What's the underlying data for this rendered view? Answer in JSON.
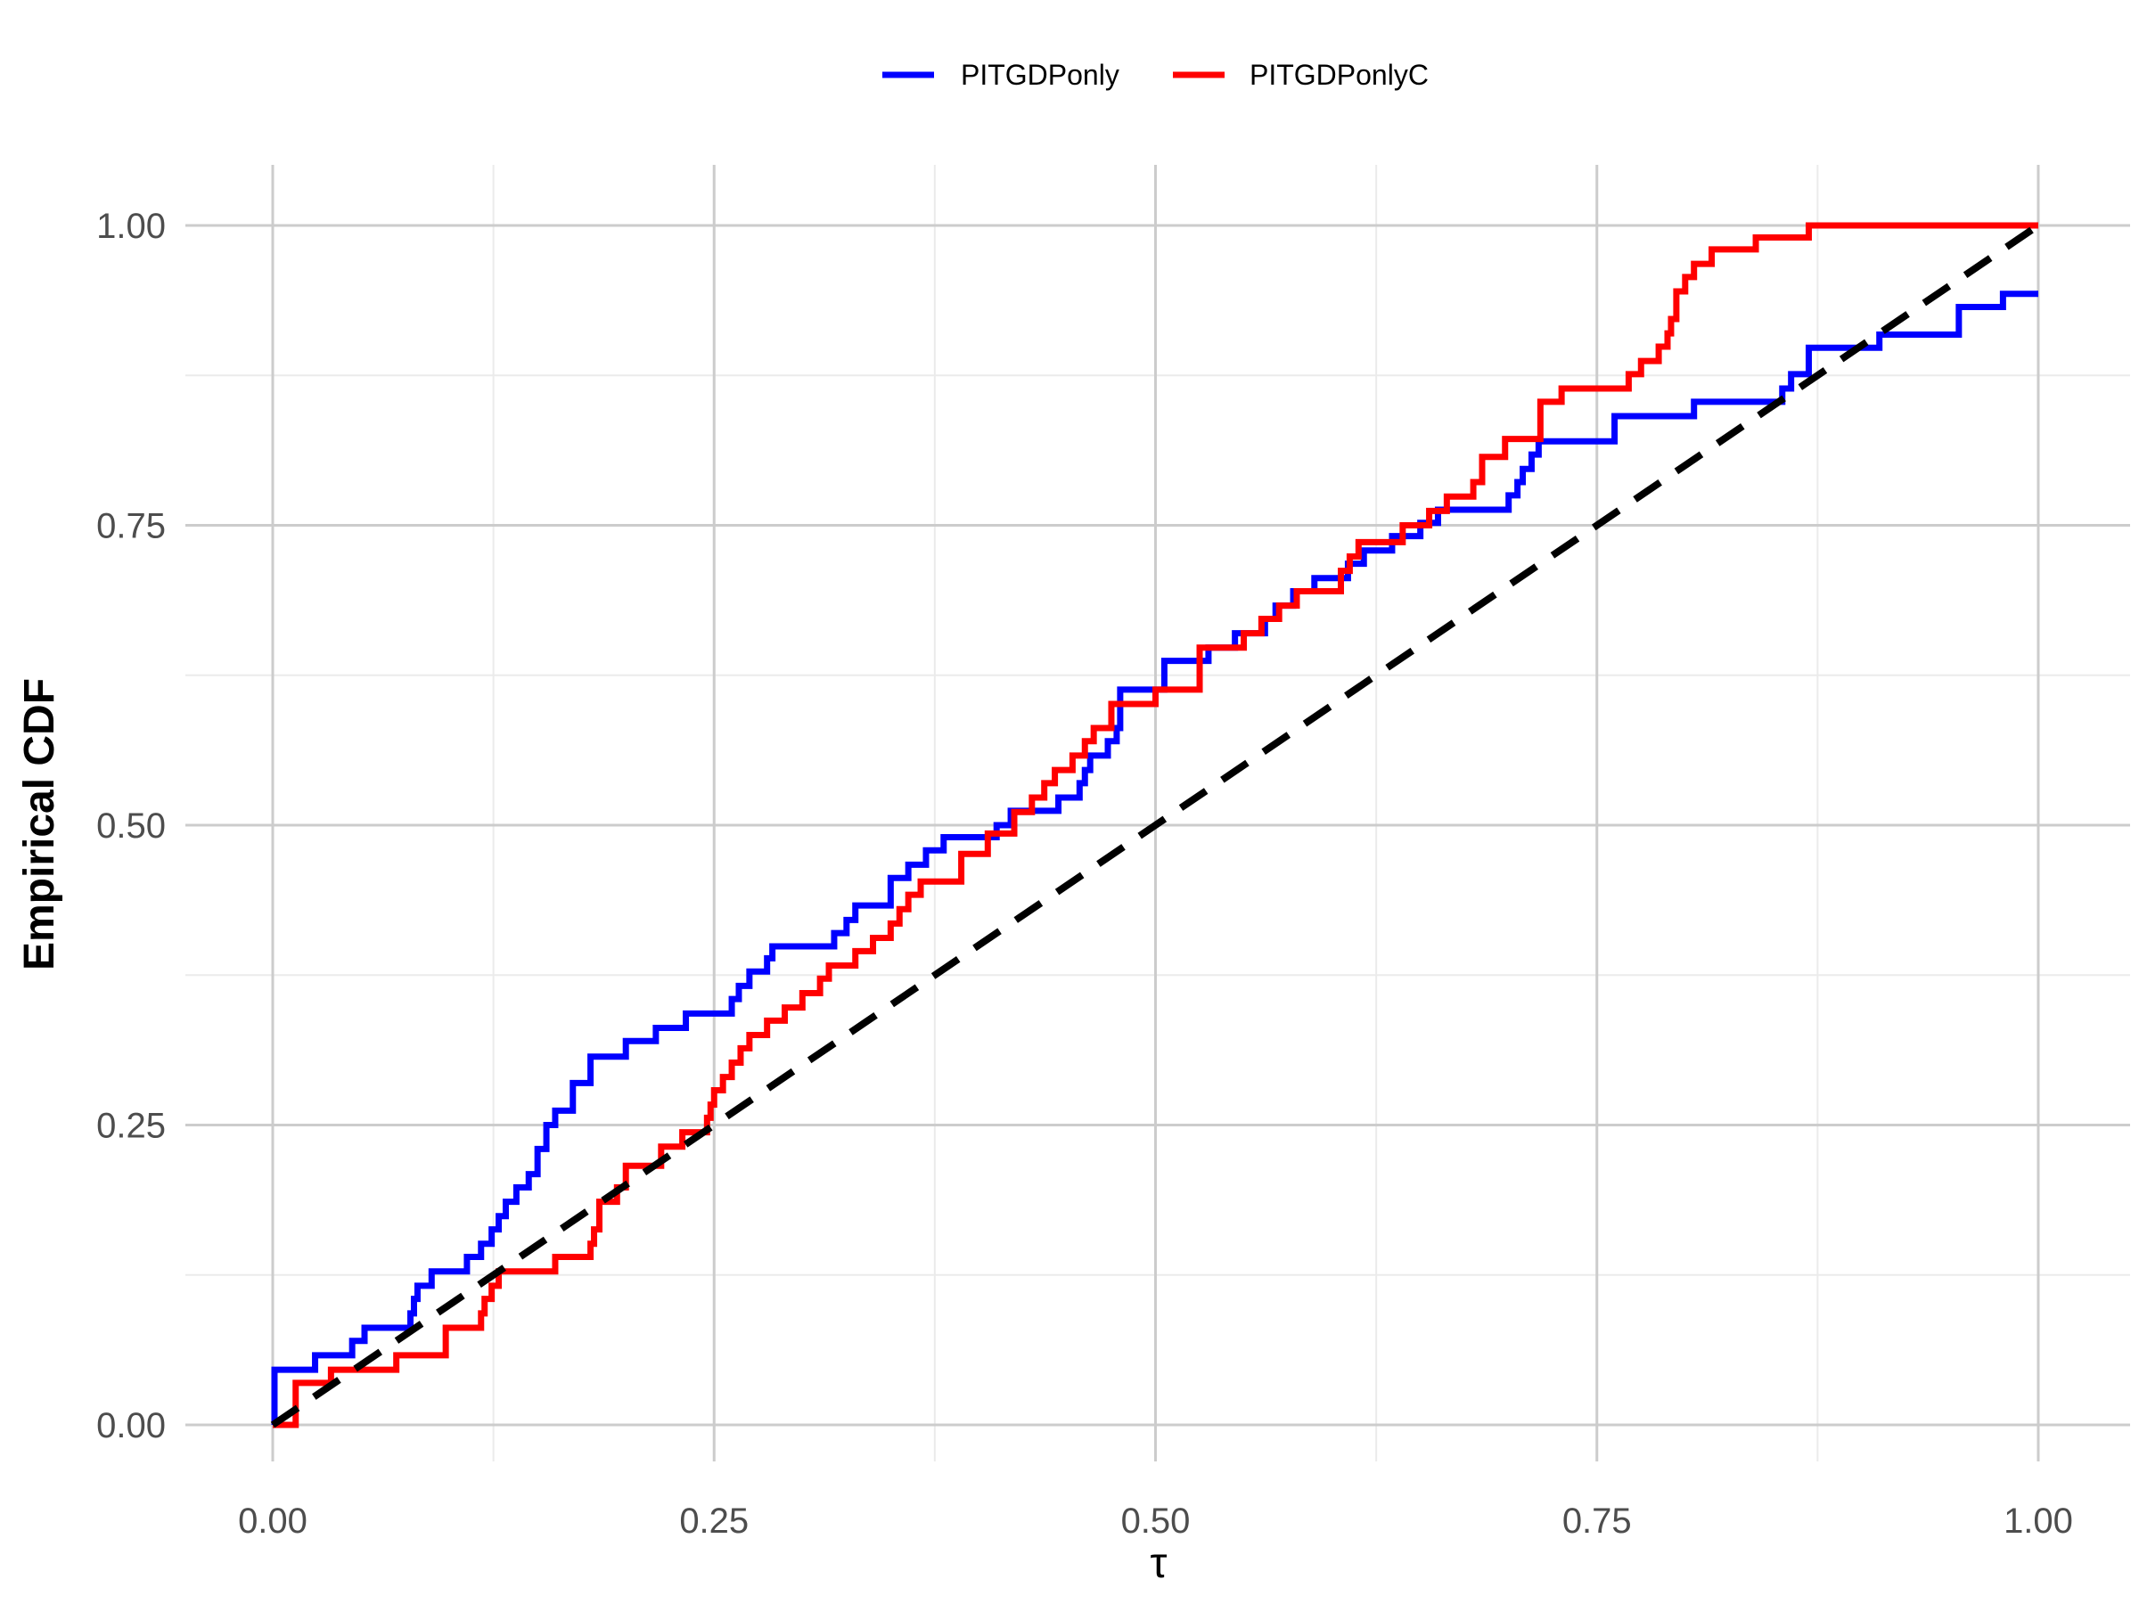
{
  "chart_data": {
    "type": "line",
    "title": "",
    "xlabel": "τ",
    "ylabel": "Empirical CDF",
    "xlim": [
      0,
      1
    ],
    "ylim": [
      0,
      1
    ],
    "x_ticks": [
      0,
      0.25,
      0.5,
      0.75,
      1
    ],
    "x_tick_labels": [
      "0.00",
      "0.25",
      "0.50",
      "0.75",
      "1.00"
    ],
    "y_ticks": [
      0,
      0.25,
      0.5,
      0.75,
      1
    ],
    "y_tick_labels": [
      "0.00",
      "0.25",
      "0.50",
      "0.75",
      "1.00"
    ],
    "grid": true,
    "legend_position": "top",
    "reference_line": {
      "name": "45-degree line",
      "x": [
        0,
        1
      ],
      "y": [
        0,
        1
      ],
      "color": "#000000",
      "dashed": true
    },
    "series": [
      {
        "name": "PITGDPonly",
        "color": "#0000FF",
        "step": true,
        "x": [
          0,
          0.001,
          0.024,
          0.045,
          0.052,
          0.078,
          0.08,
          0.082,
          0.09,
          0.11,
          0.118,
          0.124,
          0.128,
          0.132,
          0.138,
          0.145,
          0.15,
          0.155,
          0.16,
          0.17,
          0.18,
          0.2,
          0.217,
          0.234,
          0.26,
          0.264,
          0.27,
          0.28,
          0.283,
          0.318,
          0.325,
          0.33,
          0.35,
          0.36,
          0.37,
          0.38,
          0.41,
          0.418,
          0.445,
          0.457,
          0.46,
          0.463,
          0.473,
          0.478,
          0.48,
          0.505,
          0.53,
          0.545,
          0.562,
          0.568,
          0.578,
          0.59,
          0.609,
          0.618,
          0.634,
          0.65,
          0.66,
          0.7,
          0.705,
          0.708,
          0.713,
          0.717,
          0.76,
          0.805,
          0.855,
          0.86,
          0.87,
          0.91,
          0.955,
          0.98
        ],
        "y": [
          0,
          0.046,
          0.058,
          0.07,
          0.081,
          0.093,
          0.105,
          0.116,
          0.128,
          0.14,
          0.151,
          0.163,
          0.174,
          0.186,
          0.198,
          0.209,
          0.23,
          0.25,
          0.262,
          0.285,
          0.307,
          0.32,
          0.331,
          0.343,
          0.355,
          0.366,
          0.378,
          0.389,
          0.399,
          0.41,
          0.421,
          0.433,
          0.456,
          0.467,
          0.479,
          0.49,
          0.5,
          0.512,
          0.523,
          0.535,
          0.546,
          0.558,
          0.57,
          0.581,
          0.613,
          0.637,
          0.648,
          0.66,
          0.672,
          0.683,
          0.695,
          0.706,
          0.718,
          0.729,
          0.741,
          0.752,
          0.763,
          0.775,
          0.786,
          0.797,
          0.809,
          0.82,
          0.841,
          0.853,
          0.864,
          0.876,
          0.898,
          0.909,
          0.932,
          0.943
        ]
      },
      {
        "name": "PITGDPonlyC",
        "color": "#FF0000",
        "step": true,
        "x": [
          0,
          0.013,
          0.015,
          0.033,
          0.07,
          0.098,
          0.118,
          0.12,
          0.124,
          0.128,
          0.16,
          0.18,
          0.182,
          0.185,
          0.195,
          0.2,
          0.22,
          0.232,
          0.246,
          0.248,
          0.25,
          0.255,
          0.26,
          0.265,
          0.27,
          0.28,
          0.29,
          0.3,
          0.31,
          0.315,
          0.33,
          0.34,
          0.35,
          0.355,
          0.36,
          0.367,
          0.39,
          0.405,
          0.42,
          0.43,
          0.437,
          0.443,
          0.453,
          0.46,
          0.465,
          0.475,
          0.5,
          0.525,
          0.55,
          0.56,
          0.57,
          0.58,
          0.605,
          0.61,
          0.615,
          0.64,
          0.655,
          0.665,
          0.68,
          0.685,
          0.698,
          0.718,
          0.73,
          0.735,
          0.768,
          0.775,
          0.785,
          0.79,
          0.792,
          0.795,
          0.8,
          0.805,
          0.815,
          0.84,
          0.87
        ],
        "y": [
          0,
          0.035,
          0.035,
          0.046,
          0.058,
          0.081,
          0.093,
          0.105,
          0.116,
          0.128,
          0.14,
          0.151,
          0.163,
          0.186,
          0.198,
          0.216,
          0.232,
          0.244,
          0.256,
          0.267,
          0.279,
          0.29,
          0.302,
          0.314,
          0.325,
          0.337,
          0.348,
          0.36,
          0.372,
          0.383,
          0.395,
          0.406,
          0.418,
          0.43,
          0.442,
          0.453,
          0.476,
          0.493,
          0.511,
          0.523,
          0.535,
          0.546,
          0.558,
          0.57,
          0.581,
          0.601,
          0.613,
          0.648,
          0.66,
          0.672,
          0.683,
          0.695,
          0.712,
          0.724,
          0.736,
          0.75,
          0.762,
          0.774,
          0.786,
          0.807,
          0.822,
          0.853,
          0.864,
          0.864,
          0.876,
          0.887,
          0.899,
          0.91,
          0.922,
          0.945,
          0.957,
          0.968,
          0.98,
          0.99,
          1.0
        ]
      }
    ]
  }
}
